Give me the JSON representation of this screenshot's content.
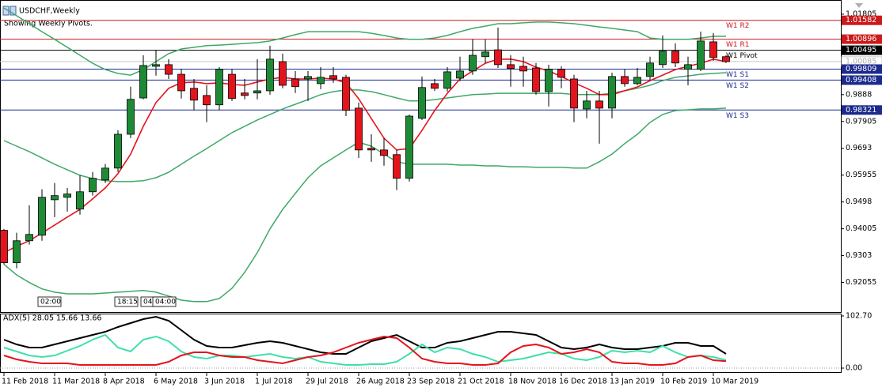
{
  "chart_data": [
    {
      "type": "candlestick",
      "title": "USDCHF,Weekly",
      "subtitle": "Showing Weekly Pivots.",
      "categories": [
        "11 Feb 2018",
        null,
        null,
        null,
        "11 Mar 2018",
        null,
        null,
        null,
        "8 Apr 2018",
        null,
        null,
        null,
        "6 May 2018",
        null,
        null,
        null,
        "3 Jun 2018",
        null,
        null,
        null,
        "1 Jul 2018",
        null,
        null,
        null,
        "29 Jul 2018",
        null,
        null,
        null,
        "26 Aug 2018",
        null,
        null,
        null,
        "23 Sep 2018",
        null,
        null,
        null,
        "21 Oct 2018",
        null,
        null,
        null,
        "18 Nov 2018",
        null,
        null,
        null,
        "16 Dec 2018",
        null,
        null,
        null,
        "13 Jan 2019",
        null,
        null,
        null,
        "10 Feb 2019",
        null,
        null,
        null,
        "10 Mar 2019",
        null
      ],
      "open": [
        0.9395,
        0.9277,
        0.9357,
        0.9377,
        0.9506,
        0.9515,
        0.9472,
        0.9535,
        0.9578,
        0.9621,
        0.9744,
        0.9876,
        0.9991,
        0.9997,
        0.9962,
        0.9911,
        0.9885,
        0.9851,
        0.9962,
        0.9894,
        0.9894,
        0.9902,
        1.0008,
        0.9945,
        0.9945,
        0.9928,
        0.9957,
        0.9951,
        0.9839,
        0.9693,
        0.9687,
        0.967,
        0.9584,
        0.9802,
        0.9928,
        0.9911,
        0.9948,
        0.9974,
        1.0026,
        1.0051,
        0.9997,
        0.9991,
        0.9985,
        0.9899,
        0.998,
        0.9945,
        0.9836,
        0.9865,
        0.9839,
        0.9954,
        0.9928,
        0.9954,
        0.9997,
        1.0046,
        0.998,
        0.998,
        1.008,
        1.0026
      ],
      "high": [
        0.94,
        0.9386,
        0.9486,
        0.9544,
        0.9567,
        0.9549,
        0.9595,
        0.9607,
        0.9636,
        0.9759,
        0.9917,
        1.0031,
        1.0051,
        1.0017,
        0.998,
        0.9945,
        0.9922,
        0.9988,
        0.998,
        0.9945,
        1.0017,
        1.0066,
        1.0037,
        0.9974,
        0.9974,
        0.9988,
        0.9988,
        0.996,
        0.9859,
        0.9744,
        0.973,
        0.9687,
        0.9816,
        0.9954,
        0.9945,
        0.9988,
        1.0026,
        1.0089,
        1.0089,
        1.0132,
        1.0031,
        1.0026,
        1.0003,
        0.9997,
        0.9991,
        0.996,
        0.9902,
        0.9902,
        0.9968,
        0.998,
        0.9985,
        1.0026,
        1.0103,
        1.0074,
        1.0026,
        1.0117,
        1.0112,
        1.0031
      ],
      "low": [
        0.9271,
        0.9257,
        0.9343,
        0.9357,
        0.9443,
        0.9463,
        0.9452,
        0.9521,
        0.9567,
        0.9607,
        0.973,
        0.9871,
        0.9957,
        0.9945,
        0.9874,
        0.9831,
        0.9788,
        0.9831,
        0.9865,
        0.9871,
        0.9871,
        0.9888,
        0.9911,
        0.9894,
        0.9865,
        0.9908,
        0.9931,
        0.981,
        0.9658,
        0.9644,
        0.963,
        0.9541,
        0.9572,
        0.9796,
        0.9902,
        0.9899,
        0.9937,
        0.996,
        1.0003,
        0.9985,
        0.9917,
        0.9917,
        0.9888,
        0.9845,
        0.9911,
        0.9788,
        0.9802,
        0.971,
        0.9802,
        0.9917,
        0.9922,
        0.994,
        0.9985,
        0.9988,
        0.9922,
        0.9974,
        1.0011,
        1.0003
      ],
      "close": [
        0.9277,
        0.9357,
        0.938,
        0.9515,
        0.9521,
        0.9527,
        0.9535,
        0.9584,
        0.9621,
        0.9744,
        0.9871,
        0.9994,
        0.9997,
        0.9962,
        0.9902,
        0.9868,
        0.9851,
        0.998,
        0.9874,
        0.9885,
        0.9902,
        1.0017,
        0.9922,
        0.9917,
        0.9954,
        0.9951,
        0.9945,
        0.9831,
        0.9687,
        0.9687,
        0.9667,
        0.9584,
        0.981,
        0.9914,
        0.9911,
        0.9971,
        0.9974,
        1.0031,
        1.0043,
        0.9997,
        0.9983,
        0.9974,
        0.9899,
        0.998,
        0.9951,
        0.9839,
        0.9865,
        0.9839,
        0.9954,
        0.9928,
        0.9951,
        1.0003,
        1.0046,
        1.0003,
        0.9997,
        1.0083,
        1.0023,
        1.0008
      ],
      "up_color": "#1f8a35",
      "down_color": "#e3141c",
      "bands": {
        "color": "#3fa867",
        "upper": [
          1.0203,
          1.0175,
          1.0146,
          1.0117,
          1.0089,
          1.006,
          1.0031,
          1.0002,
          0.9979,
          0.9965,
          0.9959,
          0.9979,
          1.0008,
          1.0037,
          1.0054,
          1.006,
          1.0066,
          1.0068,
          1.0071,
          1.0074,
          1.0077,
          1.0083,
          1.0094,
          1.0106,
          1.0117,
          1.0117,
          1.0117,
          1.0117,
          1.0117,
          1.0111,
          1.0103,
          1.0094,
          1.0089,
          1.0089,
          1.0094,
          1.0103,
          1.0117,
          1.0129,
          1.0137,
          1.0146,
          1.0146,
          1.0149,
          1.0152,
          1.0152,
          1.0149,
          1.0146,
          1.014,
          1.0134,
          1.0129,
          1.0123,
          1.0117,
          1.0094,
          1.0089,
          1.0089,
          1.0089,
          1.0094,
          1.01,
          1.01
        ],
        "middle": [
          0.9721,
          0.9701,
          0.9681,
          0.9658,
          0.9635,
          0.9615,
          0.9595,
          0.9583,
          0.9575,
          0.9572,
          0.9572,
          0.9575,
          0.9586,
          0.9606,
          0.9635,
          0.9664,
          0.9692,
          0.9721,
          0.975,
          0.9773,
          0.9796,
          0.9816,
          0.9836,
          0.9853,
          0.987,
          0.9888,
          0.9899,
          0.9905,
          0.9905,
          0.9899,
          0.9888,
          0.9876,
          0.9865,
          0.9865,
          0.987,
          0.9876,
          0.9882,
          0.9888,
          0.989,
          0.9893,
          0.9893,
          0.9893,
          0.9893,
          0.9893,
          0.9893,
          0.9888,
          0.9888,
          0.9888,
          0.9893,
          0.9902,
          0.9911,
          0.9922,
          0.9939,
          0.9951,
          0.9956,
          0.9962,
          0.9965,
          0.9968
        ],
        "lower": [
          0.9271,
          0.9233,
          0.9205,
          0.9182,
          0.917,
          0.9164,
          0.9164,
          0.9164,
          0.9167,
          0.917,
          0.9173,
          0.9176,
          0.917,
          0.9156,
          0.9141,
          0.9136,
          0.9136,
          0.9147,
          0.9184,
          0.9242,
          0.9314,
          0.94,
          0.9471,
          0.9529,
          0.9586,
          0.9629,
          0.9658,
          0.9687,
          0.9715,
          0.9701,
          0.9672,
          0.9644,
          0.9635,
          0.9635,
          0.9635,
          0.9635,
          0.9632,
          0.9632,
          0.9629,
          0.9629,
          0.9626,
          0.9626,
          0.9624,
          0.9624,
          0.9624,
          0.9621,
          0.9621,
          0.9644,
          0.9672,
          0.971,
          0.9744,
          0.9787,
          0.9816,
          0.983,
          0.9833,
          0.9836,
          0.9836,
          0.9839
        ]
      },
      "ma": {
        "color": "#e3141c",
        "values": [
          0.9314,
          0.9337,
          0.9357,
          0.9385,
          0.9414,
          0.9443,
          0.9471,
          0.9509,
          0.9549,
          0.9601,
          0.9672,
          0.9773,
          0.9859,
          0.9911,
          0.9931,
          0.9934,
          0.9928,
          0.9931,
          0.9925,
          0.9922,
          0.9934,
          0.9945,
          0.9951,
          0.9945,
          0.9945,
          0.9948,
          0.9945,
          0.9931,
          0.9873,
          0.9801,
          0.973,
          0.9687,
          0.9692,
          0.9758,
          0.983,
          0.9893,
          0.9945,
          0.9974,
          1.0002,
          1.0017,
          1.0017,
          1.0008,
          0.9988,
          0.9974,
          0.9954,
          0.9931,
          0.9911,
          0.9888,
          0.9888,
          0.9902,
          0.9916,
          0.9939,
          0.9959,
          0.9979,
          0.9991,
          1.0002,
          1.0017,
          1.0008
        ]
      },
      "pivots": [
        {
          "label": "W1 R2",
          "value": 1.01582,
          "color": "#cc1a1a"
        },
        {
          "label": "W1 R1",
          "value": 1.00896,
          "color": "#cc1a1a"
        },
        {
          "label": "W1 Pivot",
          "value": 1.00495,
          "color": "#000000"
        },
        {
          "label": "W1 S1",
          "value": 0.99809,
          "color": "#1c2a8c"
        },
        {
          "label": "W1 S2",
          "value": 0.99408,
          "color": "#1c2a8c"
        },
        {
          "label": "W1 S3",
          "value": 0.98321,
          "color": "#1c2a8c"
        }
      ],
      "current_price": 1.00085,
      "time_labels": [
        "02:00",
        "18:15",
        "04:",
        "04:00"
      ],
      "ylim": [
        0.9098,
        1.0232
      ],
      "yticks": [
        1.01805,
        0.9888,
        0.97905,
        0.9693,
        0.95955,
        0.9498,
        0.94005,
        0.9303,
        0.92055
      ]
    },
    {
      "type": "line",
      "title": "ADX(5) 28.05 15.66 13.66",
      "ylim": [
        0,
        102.7
      ],
      "yticks": [
        {
          "value": 102.7,
          "label": "102.70"
        },
        {
          "value": 0,
          "label": "0.00"
        }
      ],
      "series": [
        {
          "color": "#000000",
          "values": [
            56.0,
            46.7,
            40.5,
            40.5,
            46.7,
            52.9,
            59.1,
            65.4,
            71.6,
            80.9,
            88.7,
            96.5,
            101.1,
            93.4,
            74.7,
            56.0,
            43.6,
            40.5,
            40.5,
            45.1,
            49.8,
            52.9,
            49.8,
            43.6,
            37.3,
            31.1,
            28.0,
            28.0,
            40.5,
            52.9,
            59.1,
            65.4,
            52.9,
            40.5,
            40.5,
            49.8,
            52.9,
            59.1,
            65.4,
            71.6,
            71.6,
            68.5,
            65.4,
            52.9,
            40.5,
            37.3,
            40.5,
            46.7,
            40.5,
            37.3,
            37.3,
            40.5,
            43.6,
            49.8,
            49.8,
            43.6,
            43.6,
            28.05
          ]
        },
        {
          "color": "#3ee0a8",
          "values": [
            40.5,
            32.7,
            24.9,
            21.8,
            24.9,
            34.2,
            43.6,
            56.0,
            65.4,
            40.5,
            32.7,
            56.0,
            62.2,
            52.9,
            32.7,
            21.8,
            18.7,
            24.9,
            24.9,
            21.8,
            24.9,
            28.0,
            21.8,
            18.7,
            21.8,
            12.4,
            9.3,
            6.2,
            6.2,
            7.8,
            7.8,
            12.4,
            28.0,
            46.7,
            31.1,
            40.5,
            37.3,
            28.0,
            21.8,
            12.4,
            15.6,
            18.7,
            24.9,
            31.1,
            28.0,
            18.7,
            15.6,
            21.8,
            34.2,
            31.1,
            34.2,
            31.1,
            43.6,
            31.1,
            21.8,
            24.9,
            21.8,
            15.66
          ]
        },
        {
          "color": "#e3141c",
          "values": [
            24.9,
            17.1,
            12.4,
            9.3,
            9.3,
            9.3,
            6.2,
            6.2,
            6.2,
            6.2,
            6.2,
            6.2,
            6.2,
            12.4,
            24.9,
            31.1,
            31.1,
            24.9,
            21.8,
            21.8,
            15.6,
            12.4,
            9.3,
            15.6,
            21.8,
            24.9,
            31.1,
            40.5,
            49.8,
            56.0,
            62.2,
            59.1,
            40.5,
            18.7,
            12.4,
            9.3,
            9.3,
            6.2,
            6.2,
            9.3,
            31.1,
            43.6,
            46.7,
            40.5,
            28.0,
            31.1,
            37.3,
            31.1,
            12.4,
            9.3,
            9.3,
            6.2,
            6.2,
            9.3,
            21.8,
            24.9,
            15.6,
            13.66
          ]
        }
      ]
    }
  ]
}
